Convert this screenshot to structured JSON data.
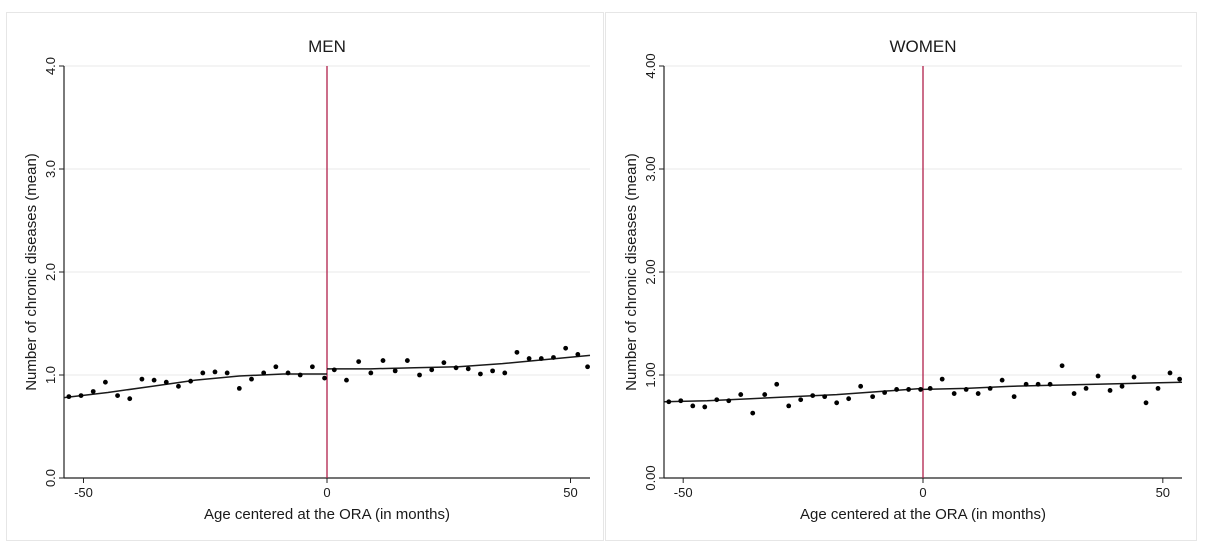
{
  "chart_data": [
    {
      "type": "scatter",
      "title": "MEN",
      "xlabel": "Age centered at the ORA (in months)",
      "ylabel": "Number of chronic diseases (mean)",
      "xlim": [
        -54,
        54
      ],
      "ylim": [
        0,
        4
      ],
      "xticks": [
        -50,
        0,
        50
      ],
      "xtick_labels": [
        "-50",
        "0",
        "50"
      ],
      "yticks": [
        0,
        1,
        2,
        3,
        4
      ],
      "ytick_labels": [
        "0.0",
        "1.0",
        "2.0",
        "3.0",
        "4.0"
      ],
      "grid": "horizontal",
      "cutoff_x": 0,
      "colors": {
        "points": "#000000",
        "fit": "#1a1a1a",
        "cutoff": "#b0204a",
        "grid": "#e8e8e8"
      },
      "points": {
        "x": [
          -53,
          -50.5,
          -48,
          -45.5,
          -43,
          -40.5,
          -38,
          -35.5,
          -33,
          -30.5,
          -28,
          -25.5,
          -23,
          -20.5,
          -18,
          -15.5,
          -13,
          -10.5,
          -8,
          -5.5,
          -3,
          -0.5,
          1.5,
          4,
          6.5,
          9,
          11.5,
          14,
          16.5,
          19,
          21.5,
          24,
          26.5,
          29,
          31.5,
          34,
          36.5,
          39,
          41.5,
          44,
          46.5,
          49,
          51.5,
          53.5
        ],
        "y": [
          0.79,
          0.8,
          0.84,
          0.93,
          0.8,
          0.77,
          0.96,
          0.95,
          0.93,
          0.89,
          0.94,
          1.02,
          1.03,
          1.02,
          0.87,
          0.96,
          1.02,
          1.08,
          1.02,
          1.0,
          1.08,
          0.97,
          1.05,
          0.95,
          1.13,
          1.02,
          1.14,
          1.04,
          1.14,
          1.0,
          1.05,
          1.12,
          1.07,
          1.06,
          1.01,
          1.04,
          1.02,
          1.22,
          1.16,
          1.16,
          1.17,
          1.26,
          1.2,
          1.08
        ]
      },
      "fit_left": {
        "x": [
          -54,
          -45,
          -36,
          -27,
          -18,
          -9,
          0
        ],
        "y": [
          0.78,
          0.83,
          0.89,
          0.95,
          0.99,
          1.01,
          1.01
        ]
      },
      "fit_right": {
        "x": [
          0,
          9,
          18,
          27,
          36,
          45,
          54
        ],
        "y": [
          1.06,
          1.06,
          1.07,
          1.08,
          1.11,
          1.15,
          1.19
        ]
      }
    },
    {
      "type": "scatter",
      "title": "WOMEN",
      "xlabel": "Age centered at the ORA (in months)",
      "ylabel": "Number of chronic diseases (mean)",
      "xlim": [
        -54,
        54
      ],
      "ylim": [
        0,
        4
      ],
      "xticks": [
        -50,
        0,
        50
      ],
      "xtick_labels": [
        "-50",
        "0",
        "50"
      ],
      "yticks": [
        0,
        1,
        2,
        3,
        4
      ],
      "ytick_labels": [
        "0.00",
        "1.00",
        "2.00",
        "3.00",
        "4.00"
      ],
      "grid": "horizontal",
      "cutoff_x": 0,
      "colors": {
        "points": "#000000",
        "fit": "#1a1a1a",
        "cutoff": "#b0204a",
        "grid": "#e8e8e8"
      },
      "points": {
        "x": [
          -53,
          -50.5,
          -48,
          -45.5,
          -43,
          -40.5,
          -38,
          -35.5,
          -33,
          -30.5,
          -28,
          -25.5,
          -23,
          -20.5,
          -18,
          -15.5,
          -13,
          -10.5,
          -8,
          -5.5,
          -3,
          -0.5,
          1.5,
          4,
          6.5,
          9,
          11.5,
          14,
          16.5,
          19,
          21.5,
          24,
          26.5,
          29,
          31.5,
          34,
          36.5,
          39,
          41.5,
          44,
          46.5,
          49,
          51.5,
          53.5
        ],
        "y": [
          0.74,
          0.75,
          0.7,
          0.69,
          0.76,
          0.75,
          0.81,
          0.63,
          0.81,
          0.91,
          0.7,
          0.76,
          0.8,
          0.79,
          0.73,
          0.77,
          0.89,
          0.79,
          0.83,
          0.86,
          0.86,
          0.86,
          0.87,
          0.96,
          0.82,
          0.86,
          0.82,
          0.87,
          0.95,
          0.79,
          0.91,
          0.91,
          0.91,
          1.09,
          0.82,
          0.87,
          0.99,
          0.85,
          0.89,
          0.98,
          0.73,
          0.87,
          1.02,
          0.96
        ]
      },
      "fit_left": {
        "x": [
          -54,
          -45,
          -36,
          -27,
          -18,
          -9,
          0
        ],
        "y": [
          0.74,
          0.75,
          0.77,
          0.79,
          0.81,
          0.84,
          0.87
        ]
      },
      "fit_right": {
        "x": [
          0,
          9,
          18,
          27,
          36,
          45,
          54
        ],
        "y": [
          0.86,
          0.87,
          0.89,
          0.9,
          0.91,
          0.92,
          0.93
        ]
      }
    }
  ]
}
